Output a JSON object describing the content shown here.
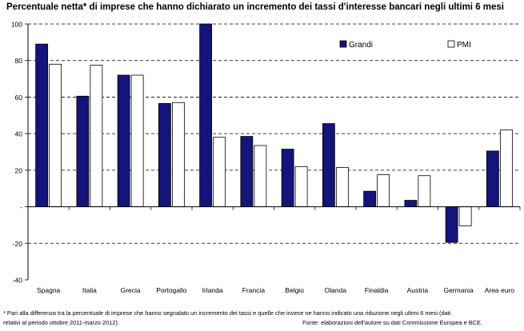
{
  "chart_data": {
    "type": "bar",
    "title": "Percentuale netta* di imprese che hanno dichiarato un incremento dei tassi d'interesse bancari negli ultimi 6 mesi",
    "categories": [
      "Spagna",
      "Italia",
      "Grecia",
      "Portogallo",
      "Irlanda",
      "Francia",
      "Belgio",
      "Olanda",
      "Finaldia",
      "Austria",
      "Germania",
      "Area euro"
    ],
    "series": [
      {
        "name": "Grandi",
        "color": "#14147a",
        "values": [
          89,
          60.5,
          72,
          56.5,
          100,
          38.5,
          31.5,
          45.5,
          8.5,
          3.5,
          -19.5,
          30.5
        ]
      },
      {
        "name": "PMI",
        "color": "#ffffff",
        "values": [
          78,
          77.5,
          72,
          57,
          38,
          33.5,
          22,
          21.5,
          17.5,
          17,
          -10.5,
          42
        ]
      }
    ],
    "ylim": [
      -40,
      100
    ],
    "yticks": [
      -40,
      -20,
      0,
      20,
      40,
      60,
      80,
      100
    ],
    "ytick_labels": [
      "-40",
      "-20",
      "-",
      "20",
      "40",
      "60",
      "80",
      "100"
    ],
    "xlabel": "",
    "ylabel": "",
    "grid": "dashed horizontal",
    "legend_position": "top-right"
  },
  "footnote": {
    "line1": "* Pari alla differenza tra la percentuale di imprese che hanno segnalato un incremento dei tassi e quelle che invece ne hanno indicato una riduzione negli ultimi 6 mesi (dati",
    "line2": "relativi al periodo ottobre 2011-marzo 2012).",
    "source": "Fonte: elaborazioni dell'autore su dati Commissione Europea e BCE."
  }
}
